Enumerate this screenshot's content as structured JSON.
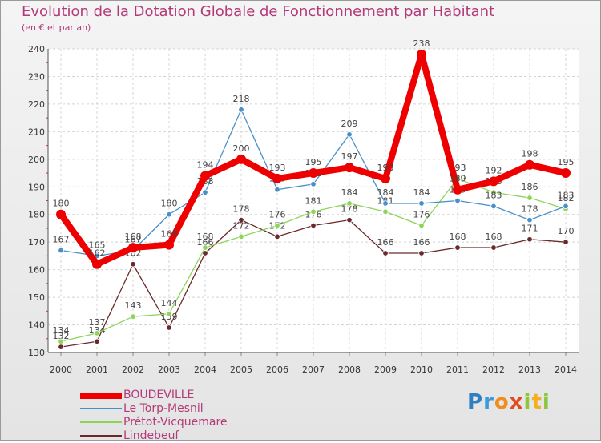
{
  "chart_data": {
    "type": "line",
    "title": "Evolution de la Dotation Globale de Fonctionnement par Habitant",
    "subtitle": "(en € et par an)",
    "x": [
      "2000",
      "2001",
      "2002",
      "2003",
      "2004",
      "2005",
      "2006",
      "2007",
      "2008",
      "2009",
      "2010",
      "2011",
      "2012",
      "2013",
      "2014"
    ],
    "yticks": [
      130,
      140,
      150,
      160,
      170,
      180,
      190,
      200,
      210,
      220,
      230,
      240
    ],
    "ylim": [
      130,
      240
    ],
    "series": [
      {
        "name": "BOUDEVILLE",
        "color": "#ee0000",
        "values": [
          180,
          162,
          168,
          169,
          194,
          200,
          193,
          195,
          197,
          193,
          238,
          189,
          192,
          198,
          195
        ],
        "labels": [
          "180",
          "162",
          "168",
          "169",
          "194",
          "200",
          "193",
          "195",
          "197",
          "193",
          "238",
          "189",
          "192",
          "198",
          "195"
        ]
      },
      {
        "name": "Le Torp-Mesnil",
        "color": "#4a90c8",
        "values": [
          167,
          165,
          167,
          180,
          188,
          218,
          189,
          191,
          209,
          184,
          184,
          185,
          183,
          178,
          183
        ],
        "labels": [
          "167",
          "165",
          "167",
          "180",
          "188",
          "218",
          "189",
          "191",
          "209",
          "184",
          "184",
          "185",
          "183",
          "178",
          "183"
        ]
      },
      {
        "name": "Prétot-Vicquemare",
        "color": "#8fd45a",
        "values": [
          134,
          137,
          143,
          144,
          168,
          172,
          176,
          181,
          184,
          181,
          176,
          193,
          188,
          186,
          182
        ],
        "labels": [
          "134",
          "137",
          "143",
          "144",
          "168",
          "172",
          "176",
          "181",
          "184",
          "181",
          "176",
          "193",
          "188",
          "186",
          "182"
        ]
      },
      {
        "name": "Lindebeuf",
        "color": "#6b2a2a",
        "values": [
          132,
          134,
          162,
          139,
          166,
          178,
          172,
          176,
          178,
          166,
          166,
          168,
          168,
          171,
          170
        ],
        "labels": [
          "132",
          "134",
          "162",
          "139",
          "166",
          "178",
          "172",
          "176",
          "178",
          "166",
          "166",
          "168",
          "168",
          "171",
          "170"
        ]
      }
    ]
  },
  "logo": {
    "p": "P",
    "r": "r",
    "o": "o",
    "x": "x",
    "i": "i",
    "t": "t",
    "i2": "i"
  }
}
